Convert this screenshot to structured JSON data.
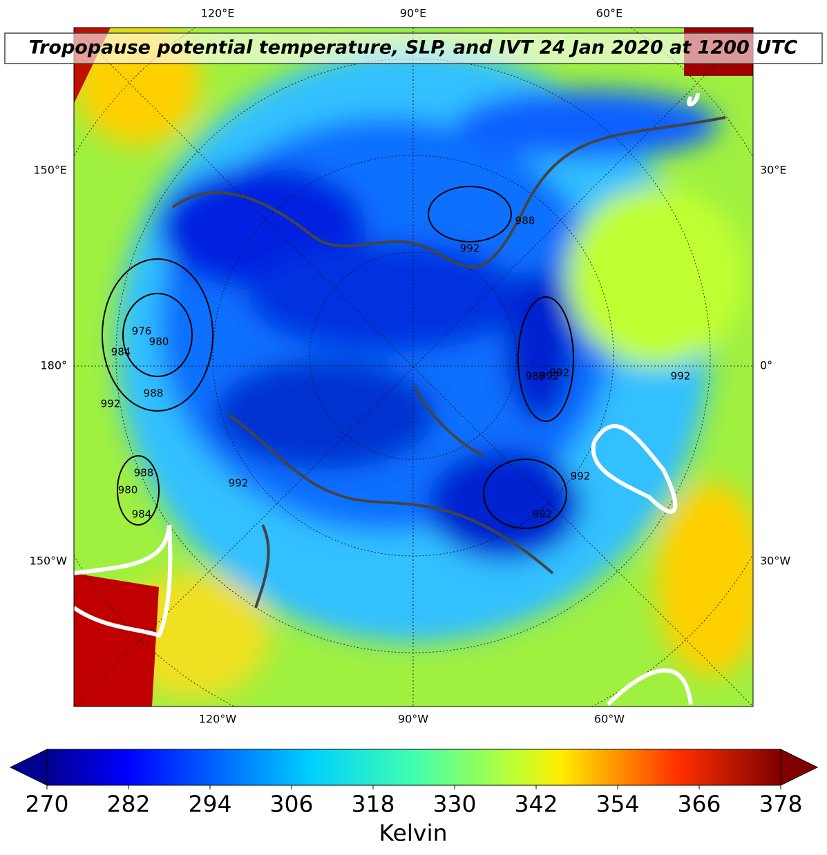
{
  "map": {
    "title": "Tropopause potential temperature, SLP, and IVT 24 Jan 2020 at 1200 UTC",
    "labels_top": [
      "120°E",
      "90°E",
      "60°E"
    ],
    "labels_bottom": [
      "120°W",
      "90°W",
      "60°W"
    ],
    "labels_left": [
      "150°E",
      "180°",
      "150°W"
    ],
    "labels_right": [
      "30°E",
      "0°",
      "30°W"
    ],
    "slp_labels": [
      976,
      980,
      984,
      988,
      992,
      988,
      980,
      984,
      992,
      988,
      992,
      992,
      992,
      988,
      992,
      992,
      992
    ]
  },
  "colorbar": {
    "label": "Kelvin",
    "lim": [
      270,
      378
    ],
    "ticks": [
      270,
      282,
      294,
      306,
      318,
      330,
      342,
      354,
      366,
      378
    ]
  }
}
